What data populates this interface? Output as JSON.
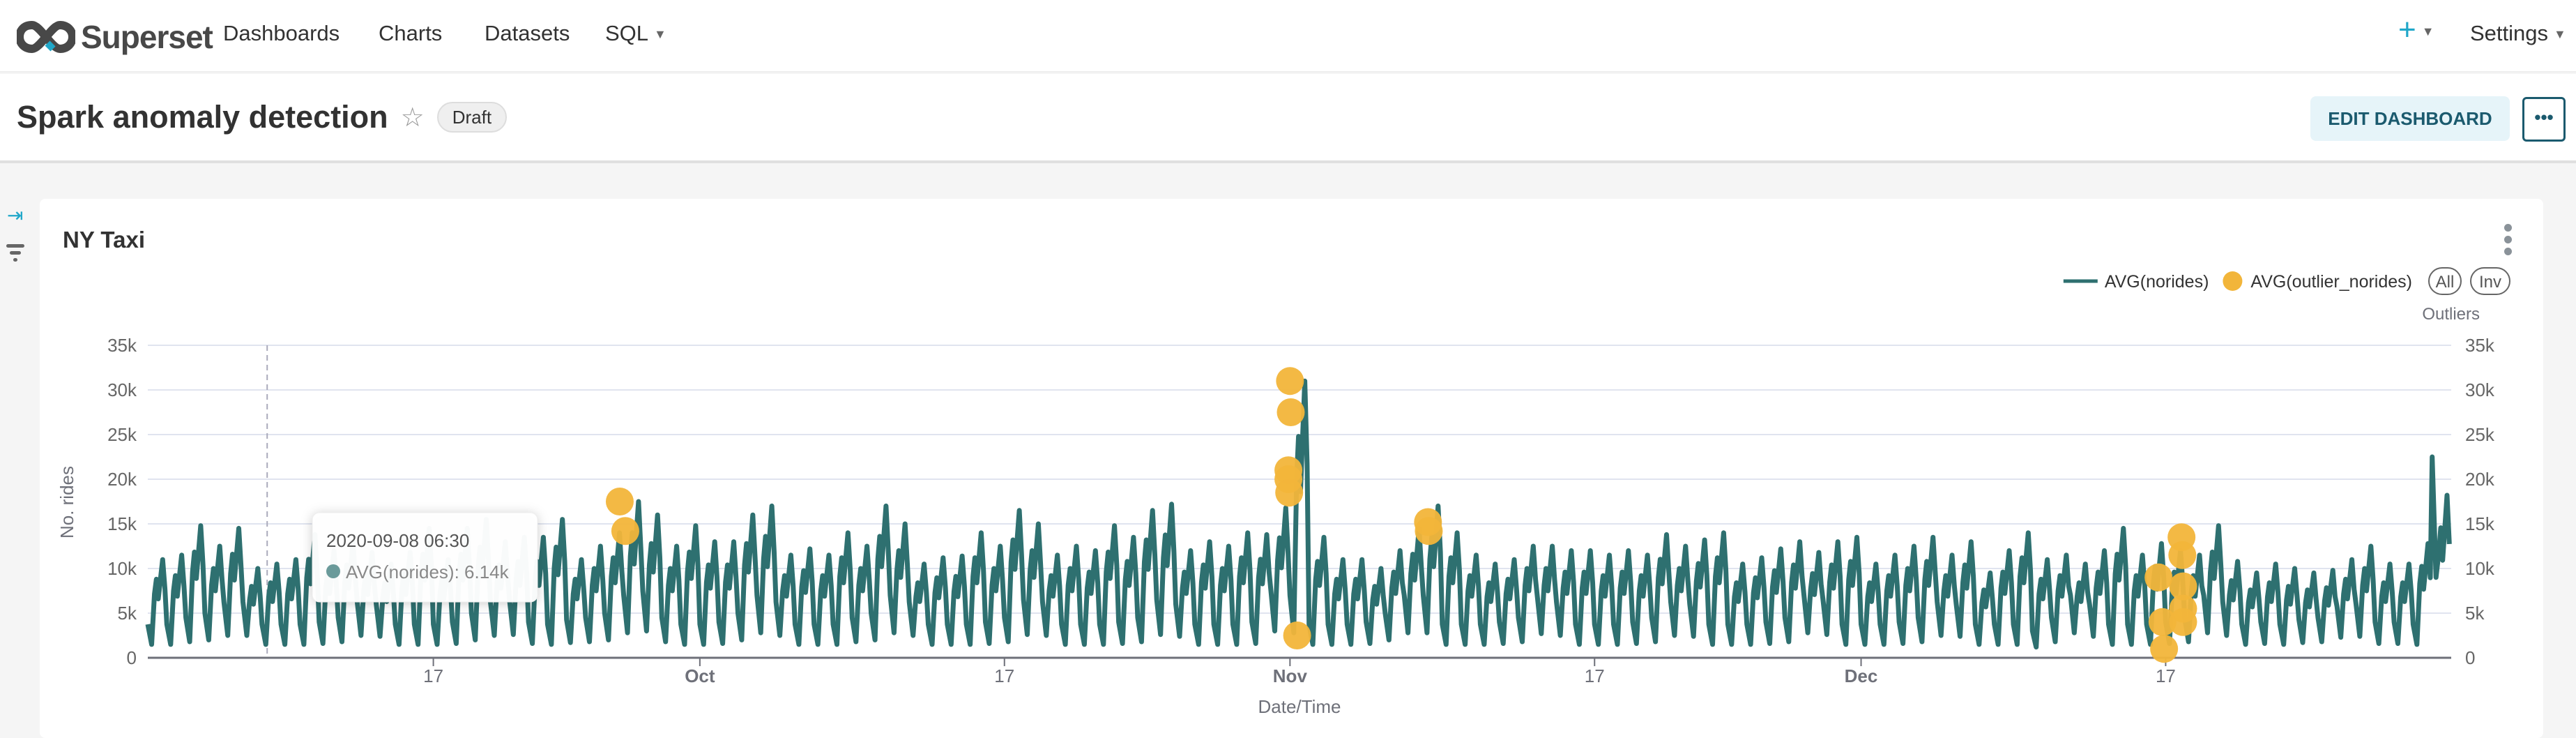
{
  "nav": {
    "brand": "Superset",
    "items": [
      {
        "label": "Dashboards"
      },
      {
        "label": "Charts"
      },
      {
        "label": "Datasets"
      },
      {
        "label": "SQL",
        "dropdown": true
      }
    ],
    "new_label": "+",
    "settings_label": "Settings"
  },
  "header": {
    "title": "Spark anomaly detection",
    "status_badge": "Draft",
    "edit_label": "EDIT DASHBOARD",
    "more_label": "•••"
  },
  "card": {
    "title": "NY Taxi"
  },
  "colors": {
    "line": "#2e7070",
    "outlier": "#f2b53a",
    "accent": "#20a7c9",
    "grid": "#e0e4ef"
  },
  "legend": {
    "items": [
      "AVG(norides)",
      "AVG(outlier_norides)"
    ],
    "all_label": "All",
    "inv_label": "Inv"
  },
  "tooltip": {
    "title": "2020-09-08 06:30",
    "series": "AVG(norides)",
    "value": "6.14k"
  },
  "chart_data": {
    "type": "line",
    "xlabel": "Date/Time",
    "ylabel": "No. rides",
    "y2label": "Outliers",
    "xlim": [
      "2020-09-02",
      "2021-01-01"
    ],
    "ylim": [
      0,
      35000
    ],
    "yticks": [
      "0",
      "5k",
      "10k",
      "15k",
      "20k",
      "25k",
      "30k",
      "35k"
    ],
    "xticks": [
      {
        "date": "2020-09-17",
        "label": "17",
        "bold": false
      },
      {
        "date": "2020-10-01",
        "label": "Oct",
        "bold": true
      },
      {
        "date": "2020-10-17",
        "label": "17",
        "bold": false
      },
      {
        "date": "2020-11-01",
        "label": "Nov",
        "bold": true
      },
      {
        "date": "2020-11-17",
        "label": "17",
        "bold": false
      },
      {
        "date": "2020-12-01",
        "label": "Dec",
        "bold": true
      },
      {
        "date": "2020-12-17",
        "label": "17",
        "bold": false
      }
    ],
    "grid": true,
    "legend_position": "top-right",
    "series": [
      {
        "name": "AVG(norides)",
        "start_date": "2020-09-02",
        "daily_peak": [
          11000,
          11500,
          14800,
          12500,
          14500,
          10000,
          10500,
          11000,
          13800,
          12000,
          13000,
          11800,
          10500,
          11800,
          14500,
          11000,
          14500,
          15500,
          13000,
          13500,
          13500,
          15500,
          11000,
          12500,
          14000,
          17500,
          16000,
          12500,
          14800,
          13000,
          13000,
          16000,
          17000,
          11500,
          12200,
          11500,
          14000,
          12500,
          17000,
          15000,
          10500,
          11200,
          11400,
          14000,
          12500,
          16500,
          15000,
          11500,
          12500,
          12000,
          14800,
          13500,
          16500,
          17200,
          12000,
          13000,
          12500,
          14000,
          13800,
          16800,
          31000,
          13500,
          11000,
          11000,
          10000,
          12000,
          14500,
          17000,
          14000,
          11500,
          10500,
          11000,
          12500,
          12500,
          12000,
          12000,
          11500,
          12000,
          11500,
          13800,
          12500,
          13200,
          14000,
          10500,
          11200,
          12200,
          13000,
          11800,
          13000,
          13500,
          10500,
          11500,
          12500,
          13500,
          11500,
          13000,
          9500,
          12000,
          14000,
          11000,
          11500,
          10500,
          12000,
          14500,
          11500,
          12800,
          12000,
          11500,
          14800,
          10800,
          9500,
          10500,
          10000,
          9500,
          9800,
          11000,
          12500,
          10500,
          10500,
          12800,
          18200
        ],
        "daily_trough": [
          1500,
          1500,
          1800,
          2000,
          2500,
          2500,
          1500,
          1500,
          1500,
          1600,
          1800,
          2500,
          2400,
          1500,
          1500,
          1500,
          1600,
          2000,
          2500,
          2600,
          1600,
          1500,
          1700,
          1800,
          2000,
          2800,
          3000,
          1800,
          1500,
          1500,
          1600,
          2000,
          2800,
          2500,
          1500,
          1500,
          1500,
          1800,
          2000,
          2800,
          2500,
          1500,
          1500,
          1500,
          1600,
          1800,
          2600,
          2500,
          1500,
          1500,
          1500,
          1600,
          1800,
          2600,
          2400,
          1500,
          1500,
          1500,
          1600,
          3000,
          2800,
          1500,
          1500,
          1500,
          1600,
          2000,
          2800,
          2800,
          1500,
          1500,
          1500,
          1600,
          1800,
          2700,
          2500,
          1500,
          1500,
          1500,
          1600,
          1800,
          2500,
          2400,
          1500,
          1500,
          1500,
          1600,
          1800,
          2800,
          2600,
          1500,
          1500,
          1500,
          1600,
          1800,
          2500,
          2400,
          1500,
          1500,
          1500,
          1200,
          1800,
          2800,
          2400,
          1500,
          1500,
          1500,
          1600,
          1800,
          2800,
          2500,
          1500,
          1600,
          1500,
          1700,
          1800,
          2300,
          2400,
          1600,
          1600,
          1500,
          9000
        ]
      }
    ],
    "outliers": [
      {
        "t": "2020-09-26 19:00",
        "v": 17500
      },
      {
        "t": "2020-09-27 02:00",
        "v": 14200
      },
      {
        "t": "2020-11-01 00:00",
        "v": 31000
      },
      {
        "t": "2020-11-01 01:00",
        "v": 27500
      },
      {
        "t": "2020-10-31 22:00",
        "v": 21000
      },
      {
        "t": "2020-10-31 22:00",
        "v": 20000
      },
      {
        "t": "2020-10-31 23:00",
        "v": 18500
      },
      {
        "t": "2020-11-01 09:00",
        "v": 2500
      },
      {
        "t": "2020-11-08 06:00",
        "v": 15200
      },
      {
        "t": "2020-11-08 07:00",
        "v": 14200
      },
      {
        "t": "2020-12-16 15:00",
        "v": 9000
      },
      {
        "t": "2020-12-16 20:00",
        "v": 4000
      },
      {
        "t": "2020-12-16 22:00",
        "v": 1000
      },
      {
        "t": "2020-12-17 20:00",
        "v": 13500
      },
      {
        "t": "2020-12-17 21:00",
        "v": 11500
      },
      {
        "t": "2020-12-17 22:00",
        "v": 8000
      },
      {
        "t": "2020-12-17 22:00",
        "v": 5500
      },
      {
        "t": "2020-12-17 22:00",
        "v": 4000
      }
    ]
  }
}
